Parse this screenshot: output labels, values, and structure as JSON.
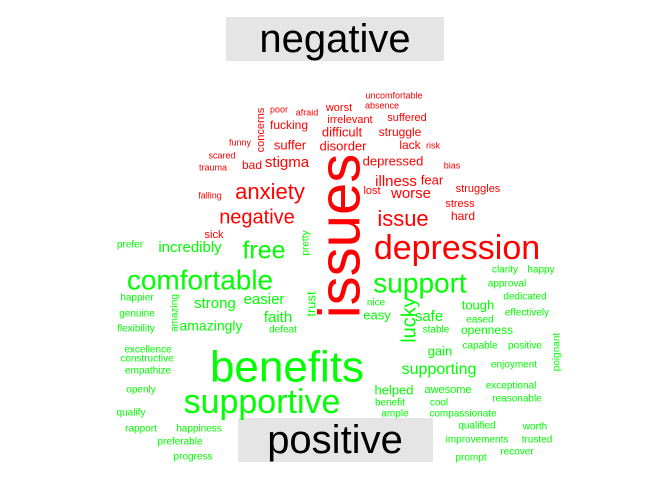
{
  "chart_data": {
    "type": "wordcloud",
    "colors": {
      "negative": "#ff0000",
      "positive": "#00ff00",
      "label_text": "#000000",
      "label_box": "#e5e5e5"
    },
    "groups": [
      {
        "name": "negative",
        "label": "negative",
        "words": [
          {
            "text": "issues",
            "weight": 10
          },
          {
            "text": "depression",
            "weight": 7
          },
          {
            "text": "anxiety",
            "weight": 5
          },
          {
            "text": "issue",
            "weight": 5
          },
          {
            "text": "negative",
            "weight": 4
          },
          {
            "text": "illness",
            "weight": 3
          },
          {
            "text": "worse",
            "weight": 3
          },
          {
            "text": "stigma",
            "weight": 3
          },
          {
            "text": "depressed",
            "weight": 3
          },
          {
            "text": "disorder",
            "weight": 3
          },
          {
            "text": "difficult",
            "weight": 3
          },
          {
            "text": "suffer",
            "weight": 3
          },
          {
            "text": "struggle",
            "weight": 2
          },
          {
            "text": "fear",
            "weight": 2
          },
          {
            "text": "hard",
            "weight": 2
          },
          {
            "text": "bad",
            "weight": 2
          },
          {
            "text": "fucking",
            "weight": 2
          },
          {
            "text": "concerns",
            "weight": 2
          },
          {
            "text": "worst",
            "weight": 2
          },
          {
            "text": "irrelevant",
            "weight": 2
          },
          {
            "text": "suffered",
            "weight": 2
          },
          {
            "text": "lack",
            "weight": 2
          },
          {
            "text": "struggles",
            "weight": 2
          },
          {
            "text": "stress",
            "weight": 2
          },
          {
            "text": "sick",
            "weight": 2
          },
          {
            "text": "lost",
            "weight": 2
          },
          {
            "text": "poor",
            "weight": 1
          },
          {
            "text": "afraid",
            "weight": 1
          },
          {
            "text": "absence",
            "weight": 1
          },
          {
            "text": "uncomfortable",
            "weight": 1
          },
          {
            "text": "risk",
            "weight": 1
          },
          {
            "text": "funny",
            "weight": 1
          },
          {
            "text": "scared",
            "weight": 1
          },
          {
            "text": "trauma",
            "weight": 1
          },
          {
            "text": "falling",
            "weight": 1
          },
          {
            "text": "bias",
            "weight": 1
          }
        ]
      },
      {
        "name": "positive",
        "label": "positive",
        "words": [
          {
            "text": "benefits",
            "weight": 10
          },
          {
            "text": "supportive",
            "weight": 7
          },
          {
            "text": "comfortable",
            "weight": 6
          },
          {
            "text": "support",
            "weight": 6
          },
          {
            "text": "free",
            "weight": 5
          },
          {
            "text": "lucky",
            "weight": 4
          },
          {
            "text": "supporting",
            "weight": 3
          },
          {
            "text": "incredibly",
            "weight": 3
          },
          {
            "text": "strong",
            "weight": 3
          },
          {
            "text": "easier",
            "weight": 3
          },
          {
            "text": "faith",
            "weight": 3
          },
          {
            "text": "amazingly",
            "weight": 3
          },
          {
            "text": "safe",
            "weight": 3
          },
          {
            "text": "easy",
            "weight": 3
          },
          {
            "text": "helped",
            "weight": 3
          },
          {
            "text": "gain",
            "weight": 3
          },
          {
            "text": "tough",
            "weight": 3
          },
          {
            "text": "openness",
            "weight": 3
          },
          {
            "text": "trust",
            "weight": 3
          },
          {
            "text": "pretty",
            "weight": 2
          },
          {
            "text": "prefer",
            "weight": 1
          },
          {
            "text": "happier",
            "weight": 1
          },
          {
            "text": "genuine",
            "weight": 1
          },
          {
            "text": "flexibility",
            "weight": 1
          },
          {
            "text": "amazing",
            "weight": 1
          },
          {
            "text": "defeat",
            "weight": 1
          },
          {
            "text": "nice",
            "weight": 1
          },
          {
            "text": "eased",
            "weight": 1
          },
          {
            "text": "stable",
            "weight": 1
          },
          {
            "text": "effectively",
            "weight": 1
          },
          {
            "text": "dedicated",
            "weight": 1
          },
          {
            "text": "approval",
            "weight": 1
          },
          {
            "text": "clarity",
            "weight": 1
          },
          {
            "text": "happy",
            "weight": 1
          },
          {
            "text": "capable",
            "weight": 1
          },
          {
            "text": "positive",
            "weight": 1
          },
          {
            "text": "enjoyment",
            "weight": 1
          },
          {
            "text": "poignant",
            "weight": 1
          },
          {
            "text": "excellence",
            "weight": 1
          },
          {
            "text": "constructive",
            "weight": 1
          },
          {
            "text": "empathize",
            "weight": 1
          },
          {
            "text": "openly",
            "weight": 1
          },
          {
            "text": "awesome",
            "weight": 2
          },
          {
            "text": "exceptional",
            "weight": 1
          },
          {
            "text": "reasonable",
            "weight": 1
          },
          {
            "text": "benefit",
            "weight": 1
          },
          {
            "text": "cool",
            "weight": 1
          },
          {
            "text": "ample",
            "weight": 1
          },
          {
            "text": "compassionate",
            "weight": 1
          },
          {
            "text": "qualify",
            "weight": 1
          },
          {
            "text": "rapport",
            "weight": 1
          },
          {
            "text": "happiness",
            "weight": 1
          },
          {
            "text": "preferable",
            "weight": 1
          },
          {
            "text": "progress",
            "weight": 1
          },
          {
            "text": "qualified",
            "weight": 1
          },
          {
            "text": "worth",
            "weight": 1
          },
          {
            "text": "improvements",
            "weight": 1
          },
          {
            "text": "trusted",
            "weight": 1
          },
          {
            "text": "recover",
            "weight": 1
          },
          {
            "text": "prompt",
            "weight": 1
          }
        ]
      }
    ]
  }
}
